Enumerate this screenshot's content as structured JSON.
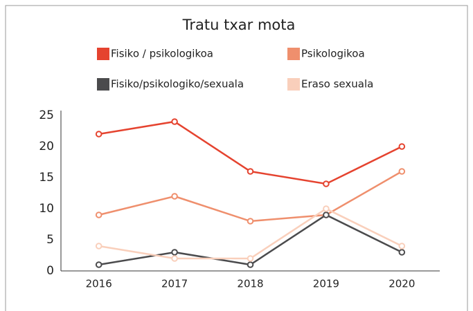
{
  "chart_data": {
    "type": "line",
    "title": "Tratu txar mota",
    "categories": [
      "2016",
      "2017",
      "2018",
      "2019",
      "2020"
    ],
    "series": [
      {
        "name": "Fisiko / psikologikoa",
        "color": "#e5432f",
        "values": [
          22,
          24,
          16,
          14,
          20
        ]
      },
      {
        "name": "Psikologikoa",
        "color": "#ef8f6d",
        "values": [
          9,
          12,
          8,
          9,
          16
        ]
      },
      {
        "name": "Fisiko/psikologiko/sexuala",
        "color": "#4b4b4d",
        "values": [
          1,
          3,
          1,
          9,
          3
        ]
      },
      {
        "name": "Eraso sexuala",
        "color": "#f9cfbb",
        "values": [
          4,
          2,
          2,
          10,
          4
        ]
      }
    ],
    "ylim": [
      0,
      25
    ],
    "yticks": [
      0,
      5,
      10,
      15,
      20,
      25
    ],
    "grid": false
  }
}
